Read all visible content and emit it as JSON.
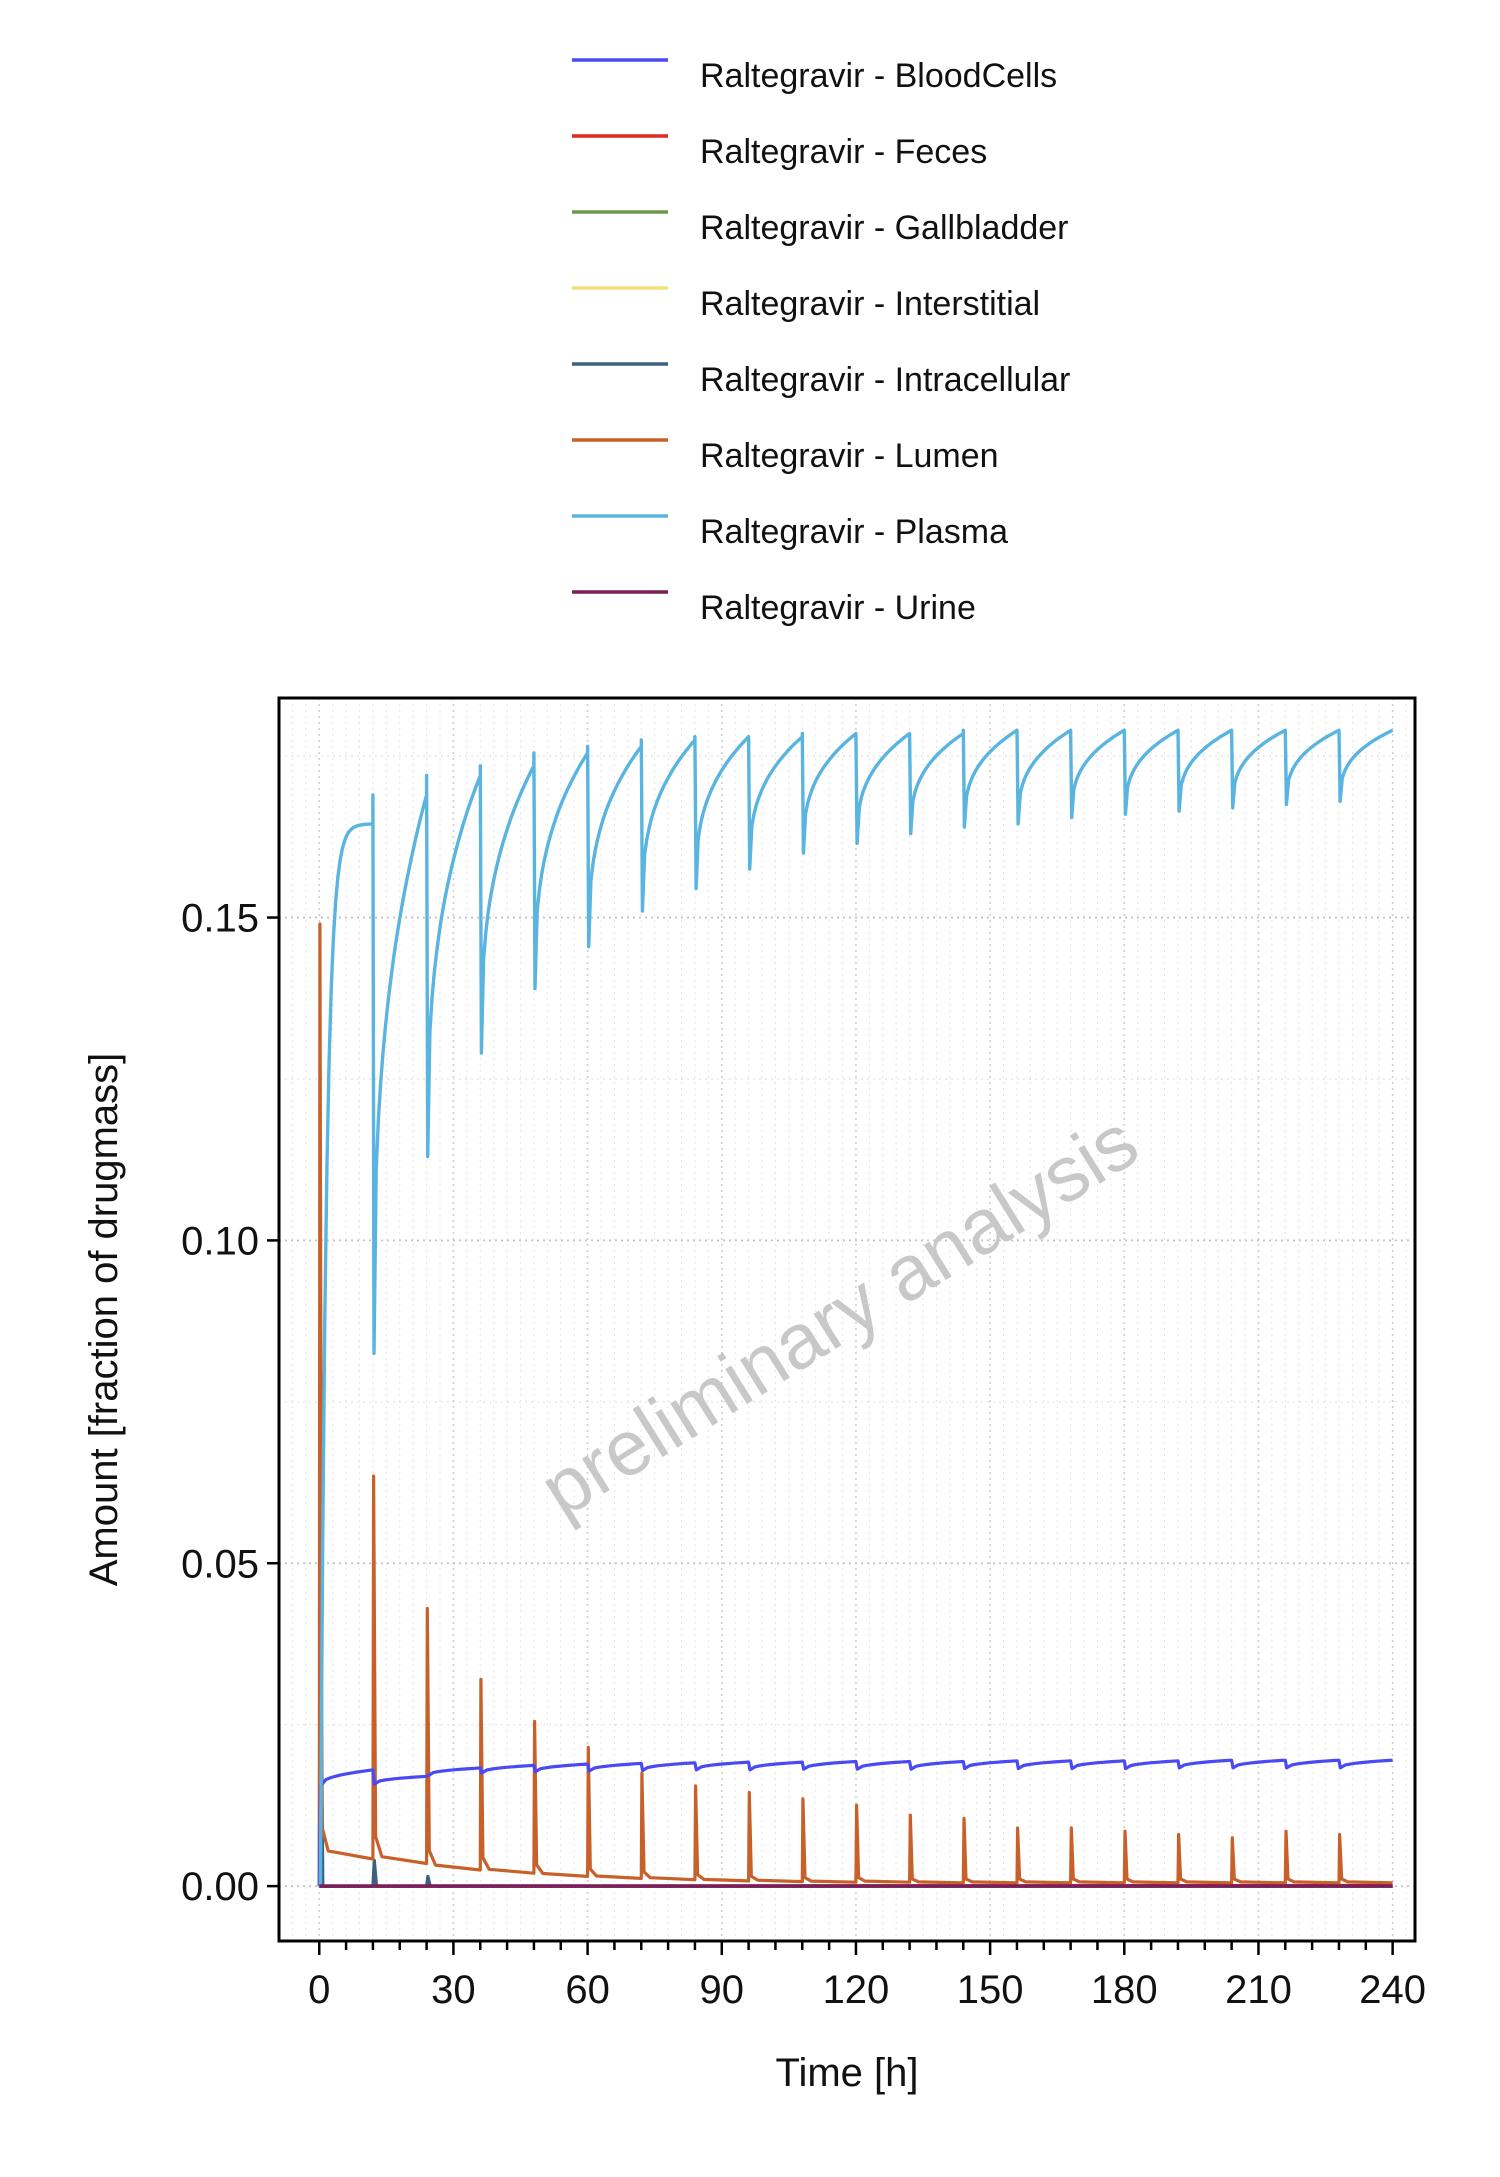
{
  "watermark": "preliminary analysis",
  "chart_data": {
    "type": "line",
    "xlabel": "Time [h]",
    "ylabel": "Amount [fraction of drugmass]",
    "xlim": [
      -9,
      245
    ],
    "ylim": [
      -0.0085,
      0.184
    ],
    "xticks": [
      0,
      30,
      60,
      90,
      120,
      150,
      180,
      210,
      240
    ],
    "xtick_labels": [
      "0",
      "30",
      "60",
      "90",
      "120",
      "150",
      "180",
      "210",
      "240"
    ],
    "yticks": [
      0.0,
      0.05,
      0.1,
      0.15
    ],
    "ytick_labels": [
      "0.00",
      "0.05",
      "0.10",
      "0.15"
    ],
    "grid": "dotted",
    "legend_position": "top",
    "dosing_interval_h": 12,
    "series": [
      {
        "name": "Raltegravir - BloodCells",
        "color": "#4a4af4",
        "x": [
          0,
          1,
          6,
          11.9,
          12.5,
          24,
          36,
          48,
          60,
          72,
          84,
          96,
          108,
          120,
          132,
          144,
          156,
          168,
          180,
          192,
          204,
          216,
          228,
          240
        ],
        "y": [
          0,
          0.0155,
          0.0172,
          0.018,
          0.017,
          0.0183,
          0.0187,
          0.0189,
          0.019,
          0.0191,
          0.0192,
          0.0192,
          0.0193,
          0.0193,
          0.0193,
          0.0194,
          0.0194,
          0.0194,
          0.0194,
          0.0195,
          0.0195,
          0.0195,
          0.0195,
          0.0195
        ]
      },
      {
        "name": "Raltegravir - Feces",
        "color": "#e0281e",
        "x": [
          0,
          240
        ],
        "y": [
          0,
          0.0001
        ]
      },
      {
        "name": "Raltegravir - Gallbladder",
        "color": "#6a9a48",
        "x": [
          0,
          240
        ],
        "y": [
          0,
          0
        ]
      },
      {
        "name": "Raltegravir - Interstitial",
        "color": "#f2de7c",
        "x": [
          0,
          240
        ],
        "y": [
          0,
          0
        ]
      },
      {
        "name": "Raltegravir - Intracellular",
        "color": "#3d6080",
        "x": [
          0,
          0.2,
          0.8,
          12,
          12.3,
          12.8,
          24,
          24.3,
          24.8,
          240
        ],
        "y": [
          0,
          0.055,
          0.0,
          0.0,
          0.004,
          0.0,
          0.0,
          0.0015,
          0.0,
          0.0
        ]
      },
      {
        "name": "Raltegravir - Lumen",
        "color": "#c8602a",
        "peaks": [
          [
            0,
            0.149
          ],
          [
            12,
            0.0635
          ],
          [
            24,
            0.043
          ],
          [
            36,
            0.032
          ],
          [
            48,
            0.0255
          ],
          [
            60,
            0.0215
          ],
          [
            72,
            0.0175
          ],
          [
            84,
            0.0155
          ],
          [
            96,
            0.0145
          ],
          [
            108,
            0.0135
          ],
          [
            120,
            0.0125
          ],
          [
            132,
            0.011
          ],
          [
            144,
            0.0105
          ],
          [
            156,
            0.009
          ],
          [
            168,
            0.009
          ],
          [
            180,
            0.0085
          ],
          [
            192,
            0.008
          ],
          [
            204,
            0.0075
          ],
          [
            216,
            0.0085
          ],
          [
            228,
            0.008
          ]
        ],
        "troughs": [
          0.0042,
          0.0035,
          0.0025,
          0.002,
          0.0015,
          0.0012,
          0.001,
          0.0008,
          0.0007,
          0.0006,
          0.0006,
          0.0005,
          0.0005,
          0.0005,
          0.0005,
          0.0005,
          0.0005,
          0.0005,
          0.0005,
          0.0005
        ]
      },
      {
        "name": "Raltegravir - Plasma",
        "color": "#5ab4e0",
        "cycles": [
          [
            0,
            0.0,
            0.1645
          ],
          [
            12,
            0.0825,
            0.169
          ],
          [
            24,
            0.113,
            0.172
          ],
          [
            36,
            0.129,
            0.1735
          ],
          [
            48,
            0.139,
            0.1755
          ],
          [
            60,
            0.1455,
            0.1765
          ],
          [
            72,
            0.151,
            0.1775
          ],
          [
            84,
            0.1545,
            0.178
          ],
          [
            96,
            0.1575,
            0.178
          ],
          [
            108,
            0.16,
            0.1785
          ],
          [
            120,
            0.1615,
            0.1785
          ],
          [
            132,
            0.163,
            0.1785
          ],
          [
            144,
            0.164,
            0.179
          ],
          [
            156,
            0.1645,
            0.179
          ],
          [
            168,
            0.1655,
            0.179
          ],
          [
            180,
            0.166,
            0.179
          ],
          [
            192,
            0.1665,
            0.179
          ],
          [
            204,
            0.167,
            0.179
          ],
          [
            216,
            0.1675,
            0.179
          ],
          [
            228,
            0.168,
            0.179
          ]
        ],
        "final_value": 0.179
      },
      {
        "name": "Raltegravir - Urine",
        "color": "#7a1f5a",
        "x": [
          0,
          240
        ],
        "y": [
          0,
          0
        ]
      }
    ]
  }
}
